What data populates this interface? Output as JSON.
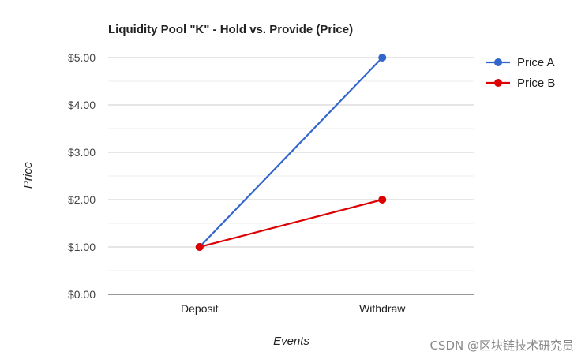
{
  "chart_data": {
    "type": "line",
    "title": "Liquidity Pool \"K\" - Hold vs. Provide (Price)",
    "xlabel": "Events",
    "ylabel": "Price",
    "categories": [
      "Deposit",
      "Withdraw"
    ],
    "y_ticks": [
      "$0.00",
      "$1.00",
      "$2.00",
      "$3.00",
      "$4.00",
      "$5.00"
    ],
    "ylim": [
      0,
      5
    ],
    "grid": true,
    "legend_position": "right",
    "series": [
      {
        "name": "Price A",
        "values": [
          1,
          5
        ],
        "color": "#3366cc"
      },
      {
        "name": "Price B",
        "values": [
          1,
          2
        ],
        "color": "#dc0000"
      }
    ]
  },
  "watermark": "CSDN @区块链技术研究员"
}
